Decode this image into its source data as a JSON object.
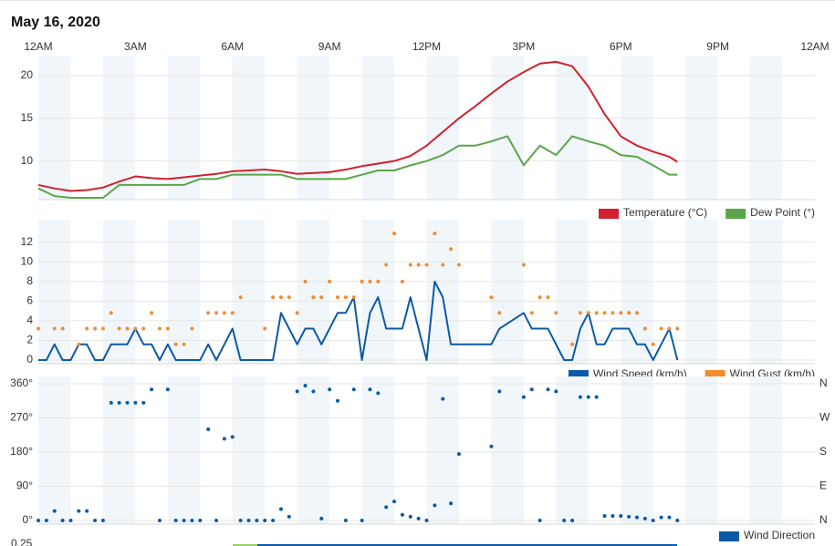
{
  "title": "May 16, 2020",
  "bottom_label": "0.25",
  "chart_data": [
    {
      "type": "line",
      "xlim": [
        0,
        24
      ],
      "xticks": [
        {
          "value": 0,
          "label": "12AM"
        },
        {
          "value": 3,
          "label": "3AM"
        },
        {
          "value": 6,
          "label": "6AM"
        },
        {
          "value": 9,
          "label": "9AM"
        },
        {
          "value": 12,
          "label": "12PM"
        },
        {
          "value": 15,
          "label": "3PM"
        },
        {
          "value": 18,
          "label": "6PM"
        },
        {
          "value": 21,
          "label": "9PM"
        },
        {
          "value": 24,
          "label": "12AM"
        }
      ],
      "ylim": [
        5.7,
        21.8
      ],
      "yticks": [
        10,
        15,
        20
      ],
      "grid": true,
      "legend": "bottom-right",
      "x": [
        0,
        0.5,
        1,
        1.5,
        2,
        2.5,
        3,
        3.5,
        4,
        4.5,
        5,
        5.5,
        6,
        6.5,
        7,
        7.5,
        8,
        8.5,
        9,
        9.5,
        10,
        10.5,
        11,
        11.5,
        12,
        12.5,
        13,
        13.5,
        14,
        14.5,
        15,
        15.5,
        16,
        16.5,
        17,
        17.5,
        18,
        18.5,
        19,
        19.5,
        19.75
      ],
      "series": [
        {
          "name": "Temperature (°C)",
          "color": "#d0202e",
          "style": "line",
          "values": [
            7.2,
            6.8,
            6.5,
            6.6,
            6.9,
            7.6,
            8.2,
            8.0,
            7.9,
            8.1,
            8.3,
            8.5,
            8.8,
            8.9,
            9.0,
            8.8,
            8.5,
            8.6,
            8.7,
            9.0,
            9.4,
            9.7,
            10.0,
            10.6,
            11.8,
            13.4,
            15.0,
            16.4,
            17.9,
            19.3,
            20.4,
            21.4,
            21.6,
            21.1,
            18.7,
            15.5,
            12.9,
            11.8,
            11.1,
            10.5,
            9.9
          ]
        },
        {
          "name": "Dew Point (°)",
          "color": "#5aa64a",
          "style": "line",
          "values": [
            6.8,
            5.9,
            5.7,
            5.7,
            5.7,
            7.2,
            7.2,
            7.2,
            7.2,
            7.2,
            7.9,
            7.9,
            8.4,
            8.4,
            8.4,
            8.4,
            7.9,
            7.9,
            7.9,
            7.9,
            8.4,
            8.9,
            8.9,
            9.5,
            10.0,
            10.7,
            11.8,
            11.8,
            12.3,
            12.9,
            9.5,
            11.8,
            10.7,
            12.9,
            12.3,
            11.8,
            10.7,
            10.5,
            9.5,
            8.4,
            8.4
          ]
        }
      ]
    },
    {
      "type": "line",
      "xlim": [
        0,
        24
      ],
      "ylim": [
        0,
        13
      ],
      "yticks": [
        0,
        2,
        4,
        6,
        8,
        10,
        12
      ],
      "grid": true,
      "legend": "bottom-right",
      "series": [
        {
          "name": "Wind Speed (km/h)",
          "color": "#0b5aa8",
          "style": "line",
          "x": [
            0,
            0.25,
            0.5,
            0.75,
            1,
            1.25,
            1.5,
            1.75,
            2,
            2.25,
            2.5,
            2.75,
            3,
            3.25,
            3.5,
            3.75,
            4,
            4.25,
            4.5,
            4.75,
            5,
            5.25,
            5.5,
            6,
            6.25,
            6.5,
            6.75,
            7,
            7.25,
            7.5,
            8,
            8.25,
            8.5,
            8.75,
            9.25,
            9.5,
            9.75,
            10,
            10.25,
            10.5,
            10.75,
            11,
            11.25,
            11.5,
            12,
            12.25,
            12.5,
            12.75,
            14,
            14.25,
            15,
            15.25,
            15.75,
            16.25,
            16.5,
            16.75,
            17,
            17.25,
            17.5,
            17.75,
            18.25,
            18.5,
            18.75,
            19,
            19.5,
            19.75
          ],
          "values": [
            0,
            0,
            1.6,
            0,
            0,
            1.6,
            1.6,
            0,
            0,
            1.6,
            1.6,
            1.6,
            3.2,
            1.6,
            1.6,
            0,
            1.6,
            0,
            0,
            0,
            0,
            1.6,
            0,
            3.2,
            0,
            0,
            0,
            0,
            0,
            4.8,
            1.6,
            3.2,
            3.2,
            1.6,
            4.8,
            4.8,
            6.4,
            0,
            4.8,
            6.4,
            3.2,
            3.2,
            3.2,
            6.4,
            0,
            8.0,
            6.4,
            1.6,
            1.6,
            3.2,
            4.8,
            3.2,
            3.2,
            0,
            0,
            3.2,
            4.8,
            1.6,
            1.6,
            3.2,
            3.2,
            1.6,
            1.6,
            0,
            3.2,
            0
          ]
        },
        {
          "name": "Wind Gust (km/h)",
          "color": "#f28c30",
          "style": "scatter",
          "x": [
            0,
            0.5,
            0.75,
            1.25,
            1.5,
            1.75,
            2,
            2.25,
            2.5,
            2.75,
            3,
            3.25,
            3.5,
            3.75,
            4,
            4.25,
            4.5,
            4.75,
            5.25,
            5.5,
            5.75,
            6,
            6.25,
            7,
            7.25,
            7.5,
            7.75,
            8,
            8.25,
            8.5,
            8.75,
            9,
            9.25,
            9.5,
            9.75,
            10,
            10.25,
            10.5,
            10.75,
            11,
            11.25,
            11.5,
            11.75,
            12,
            12.25,
            12.5,
            12.75,
            13,
            14,
            14.25,
            15,
            15.25,
            15.5,
            15.75,
            16,
            16.5,
            16.75,
            17,
            17.25,
            17.5,
            17.75,
            18,
            18.25,
            18.5,
            18.75,
            19,
            19.25,
            19.5,
            19.75
          ],
          "values": [
            3.2,
            3.2,
            3.2,
            1.6,
            3.2,
            3.2,
            3.2,
            4.8,
            3.2,
            3.2,
            3.2,
            3.2,
            4.8,
            3.2,
            3.2,
            1.6,
            1.6,
            3.2,
            4.8,
            4.8,
            4.8,
            4.8,
            6.4,
            3.2,
            6.4,
            6.4,
            6.4,
            4.8,
            8.0,
            6.4,
            6.4,
            8.0,
            6.4,
            6.4,
            6.4,
            8.0,
            8.0,
            8.0,
            9.7,
            12.9,
            8.0,
            9.7,
            9.7,
            9.7,
            12.9,
            9.7,
            11.3,
            9.7,
            6.4,
            4.8,
            9.7,
            4.8,
            6.4,
            6.4,
            4.8,
            1.6,
            4.8,
            4.8,
            4.8,
            4.8,
            4.8,
            4.8,
            4.8,
            4.8,
            3.2,
            1.6,
            3.2,
            3.2,
            3.2
          ]
        }
      ]
    },
    {
      "type": "scatter",
      "xlim": [
        0,
        24
      ],
      "ylim": [
        0,
        360
      ],
      "yticks": [
        {
          "value": 0,
          "label": "0°"
        },
        {
          "value": 90,
          "label": "90°"
        },
        {
          "value": 180,
          "label": "180°"
        },
        {
          "value": 270,
          "label": "270°"
        },
        {
          "value": 360,
          "label": "360°"
        }
      ],
      "y2lim": [
        0,
        360
      ],
      "y2ticks": [
        {
          "value": 0,
          "label": "N"
        },
        {
          "value": 90,
          "label": "E"
        },
        {
          "value": 180,
          "label": "S"
        },
        {
          "value": 270,
          "label": "W"
        },
        {
          "value": 360,
          "label": "N"
        }
      ],
      "grid": true,
      "legend": "bottom-right",
      "series": [
        {
          "name": "Wind Direction",
          "color": "#0b5aa8",
          "style": "scatter",
          "x": [
            0,
            0.25,
            0.5,
            0.75,
            1,
            1.25,
            1.5,
            1.75,
            2,
            2.25,
            2.5,
            2.75,
            3,
            3.25,
            3.5,
            3.75,
            4,
            4.25,
            4.5,
            4.75,
            5,
            5.25,
            5.5,
            5.75,
            6,
            6.25,
            6.5,
            6.75,
            7,
            7.25,
            7.5,
            7.75,
            8,
            8.25,
            8.5,
            8.75,
            9,
            9.25,
            9.5,
            9.75,
            10,
            10.25,
            10.5,
            10.75,
            11,
            11.25,
            11.5,
            11.75,
            12,
            12.25,
            12.5,
            12.75,
            13,
            14,
            14.25,
            15,
            15.25,
            15.5,
            15.75,
            16,
            16.25,
            16.5,
            16.75,
            17,
            17.25,
            17.5,
            17.75,
            18,
            18.25,
            18.5,
            18.75,
            19,
            19.25,
            19.5,
            19.75
          ],
          "values": [
            0,
            0,
            25,
            0,
            0,
            25,
            25,
            0,
            0,
            310,
            310,
            310,
            310,
            310,
            345,
            0,
            345,
            0,
            0,
            0,
            0,
            240,
            0,
            215,
            220,
            0,
            0,
            0,
            0,
            0,
            30,
            10,
            340,
            355,
            340,
            5,
            345,
            315,
            0,
            345,
            0,
            345,
            335,
            35,
            50,
            15,
            10,
            5,
            0,
            40,
            320,
            45,
            175,
            195,
            340,
            325,
            345,
            0,
            345,
            340,
            0,
            0,
            325,
            325,
            325,
            12,
            12,
            12,
            10,
            8,
            5,
            0,
            8,
            8,
            0
          ]
        }
      ]
    }
  ]
}
